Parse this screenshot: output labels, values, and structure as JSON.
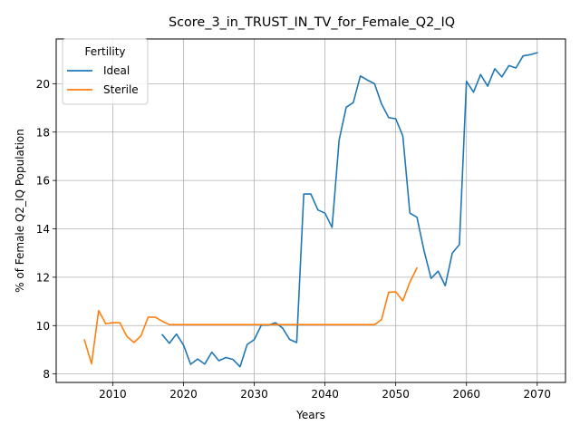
{
  "chart_data": {
    "type": "line",
    "title": "Score_3_in_TRUST_IN_TV_for_Female_Q2_IQ",
    "xlabel": "Years",
    "ylabel": "% of Female Q2_IQ Population",
    "xlim": [
      2002,
      2074
    ],
    "ylim": [
      7.65,
      21.85
    ],
    "xticks": [
      2010,
      2020,
      2030,
      2040,
      2050,
      2060,
      2070
    ],
    "yticks": [
      8,
      10,
      12,
      14,
      16,
      18,
      20
    ],
    "grid": true,
    "legend": {
      "title": "Fertility",
      "position": "top-left"
    },
    "series": [
      {
        "name": "Ideal",
        "color": "#1f77b4",
        "x": [
          2017,
          2018,
          2019,
          2020,
          2021,
          2022,
          2023,
          2024,
          2025,
          2026,
          2027,
          2028,
          2029,
          2030,
          2031,
          2032,
          2033,
          2034,
          2035,
          2036,
          2037,
          2038,
          2039,
          2040,
          2041,
          2042,
          2043,
          2044,
          2045,
          2046,
          2047,
          2048,
          2049,
          2050,
          2051,
          2052,
          2053,
          2054,
          2055,
          2056,
          2057,
          2058,
          2059,
          2060,
          2061,
          2062,
          2063,
          2064,
          2065,
          2066,
          2067,
          2068,
          2069,
          2070
        ],
        "values": [
          9.62,
          9.27,
          9.65,
          9.2,
          8.4,
          8.62,
          8.41,
          8.9,
          8.55,
          8.68,
          8.6,
          8.3,
          9.22,
          9.42,
          10.02,
          10.02,
          10.12,
          9.9,
          9.43,
          9.3,
          15.44,
          15.44,
          14.78,
          14.65,
          14.06,
          17.67,
          19.03,
          19.22,
          20.32,
          20.15,
          20.0,
          19.16,
          18.6,
          18.55,
          17.85,
          14.65,
          14.48,
          13.1,
          11.95,
          12.25,
          11.65,
          13.0,
          13.35,
          20.1,
          19.65,
          20.38,
          19.9,
          20.62,
          20.28,
          20.75,
          20.65,
          21.15,
          21.2,
          21.28
        ]
      },
      {
        "name": "Sterile",
        "color": "#ff7f0e",
        "x": [
          2006,
          2007,
          2008,
          2009,
          2010,
          2011,
          2012,
          2013,
          2014,
          2015,
          2016,
          2017,
          2018,
          2019,
          2020,
          2021,
          2022,
          2023,
          2024,
          2025,
          2026,
          2027,
          2028,
          2029,
          2030,
          2031,
          2032,
          2033,
          2034,
          2035,
          2036,
          2037,
          2038,
          2039,
          2040,
          2041,
          2042,
          2043,
          2044,
          2045,
          2046,
          2047,
          2048,
          2049,
          2050,
          2051,
          2052,
          2053
        ],
        "values": [
          9.4,
          8.42,
          10.62,
          10.08,
          10.12,
          10.12,
          9.55,
          9.3,
          9.58,
          10.35,
          10.35,
          10.18,
          10.04,
          10.04,
          10.04,
          10.04,
          10.04,
          10.04,
          10.04,
          10.04,
          10.04,
          10.04,
          10.04,
          10.04,
          10.04,
          10.04,
          10.04,
          10.04,
          10.04,
          10.04,
          10.04,
          10.04,
          10.04,
          10.04,
          10.04,
          10.04,
          10.04,
          10.04,
          10.04,
          10.04,
          10.04,
          10.04,
          10.25,
          11.38,
          11.4,
          11.02,
          11.8,
          12.38
        ]
      }
    ]
  }
}
